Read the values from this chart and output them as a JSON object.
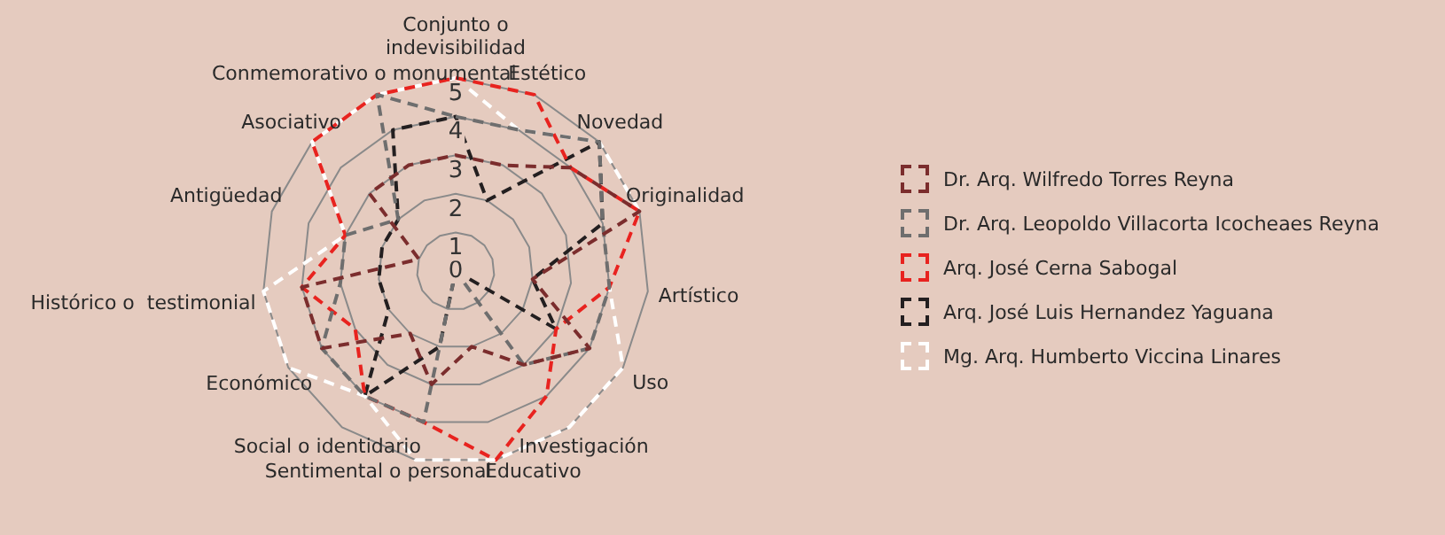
{
  "chart_data": {
    "type": "radar",
    "categories": [
      "Conjunto o indevisibilidad",
      "Estético",
      "Novedad",
      "Originalidad",
      "Artístico",
      "Uso",
      "Investigación",
      "Educativo",
      "Sentimental o personal",
      "Social o identidario",
      "Económico",
      "Histórico o  testimonial",
      "Antigüedad",
      "Asociativo",
      "Conmemorativo o monumental"
    ],
    "series": [
      {
        "name": "Dr. Arq. Wilfredo Torres Reyna",
        "color": "#7b2d2d",
        "values": [
          3,
          3,
          4,
          5,
          2,
          4,
          3,
          2,
          3,
          2,
          4,
          4,
          1,
          3,
          3
        ]
      },
      {
        "name": "Dr. Arq. Leopoldo Villacorta Icocheaes Reyna",
        "color": "#6e6e6e",
        "values": [
          4,
          4,
          5,
          4,
          4,
          4,
          3,
          0,
          4,
          4,
          4,
          3,
          3,
          2,
          5
        ]
      },
      {
        "name": "Arq. José Cerna Sabogal",
        "color": "#e8231f",
        "values": [
          5,
          5,
          4,
          5,
          4,
          3,
          4,
          5,
          4,
          4,
          3,
          4,
          3,
          5,
          5
        ]
      },
      {
        "name": "Arq. José Luis Hernandez Yaguana",
        "color": "#231f20",
        "values": [
          4,
          2,
          5,
          4,
          2,
          3,
          0,
          0,
          2,
          4,
          2,
          2,
          2,
          2,
          4
        ]
      },
      {
        "name": "Mg. Arq. Humberto Viccina Linares",
        "color": "#ffffff",
        "values": [
          5,
          4,
          5,
          5,
          4,
          5,
          5,
          5,
          5,
          4,
          5,
          5,
          3,
          5,
          5
        ]
      }
    ],
    "ylim": [
      0,
      5
    ],
    "yticks": [
      0,
      1,
      2,
      3,
      4,
      5
    ],
    "grid": true,
    "legend": "right",
    "marker": "none",
    "line_style": "dashed"
  }
}
